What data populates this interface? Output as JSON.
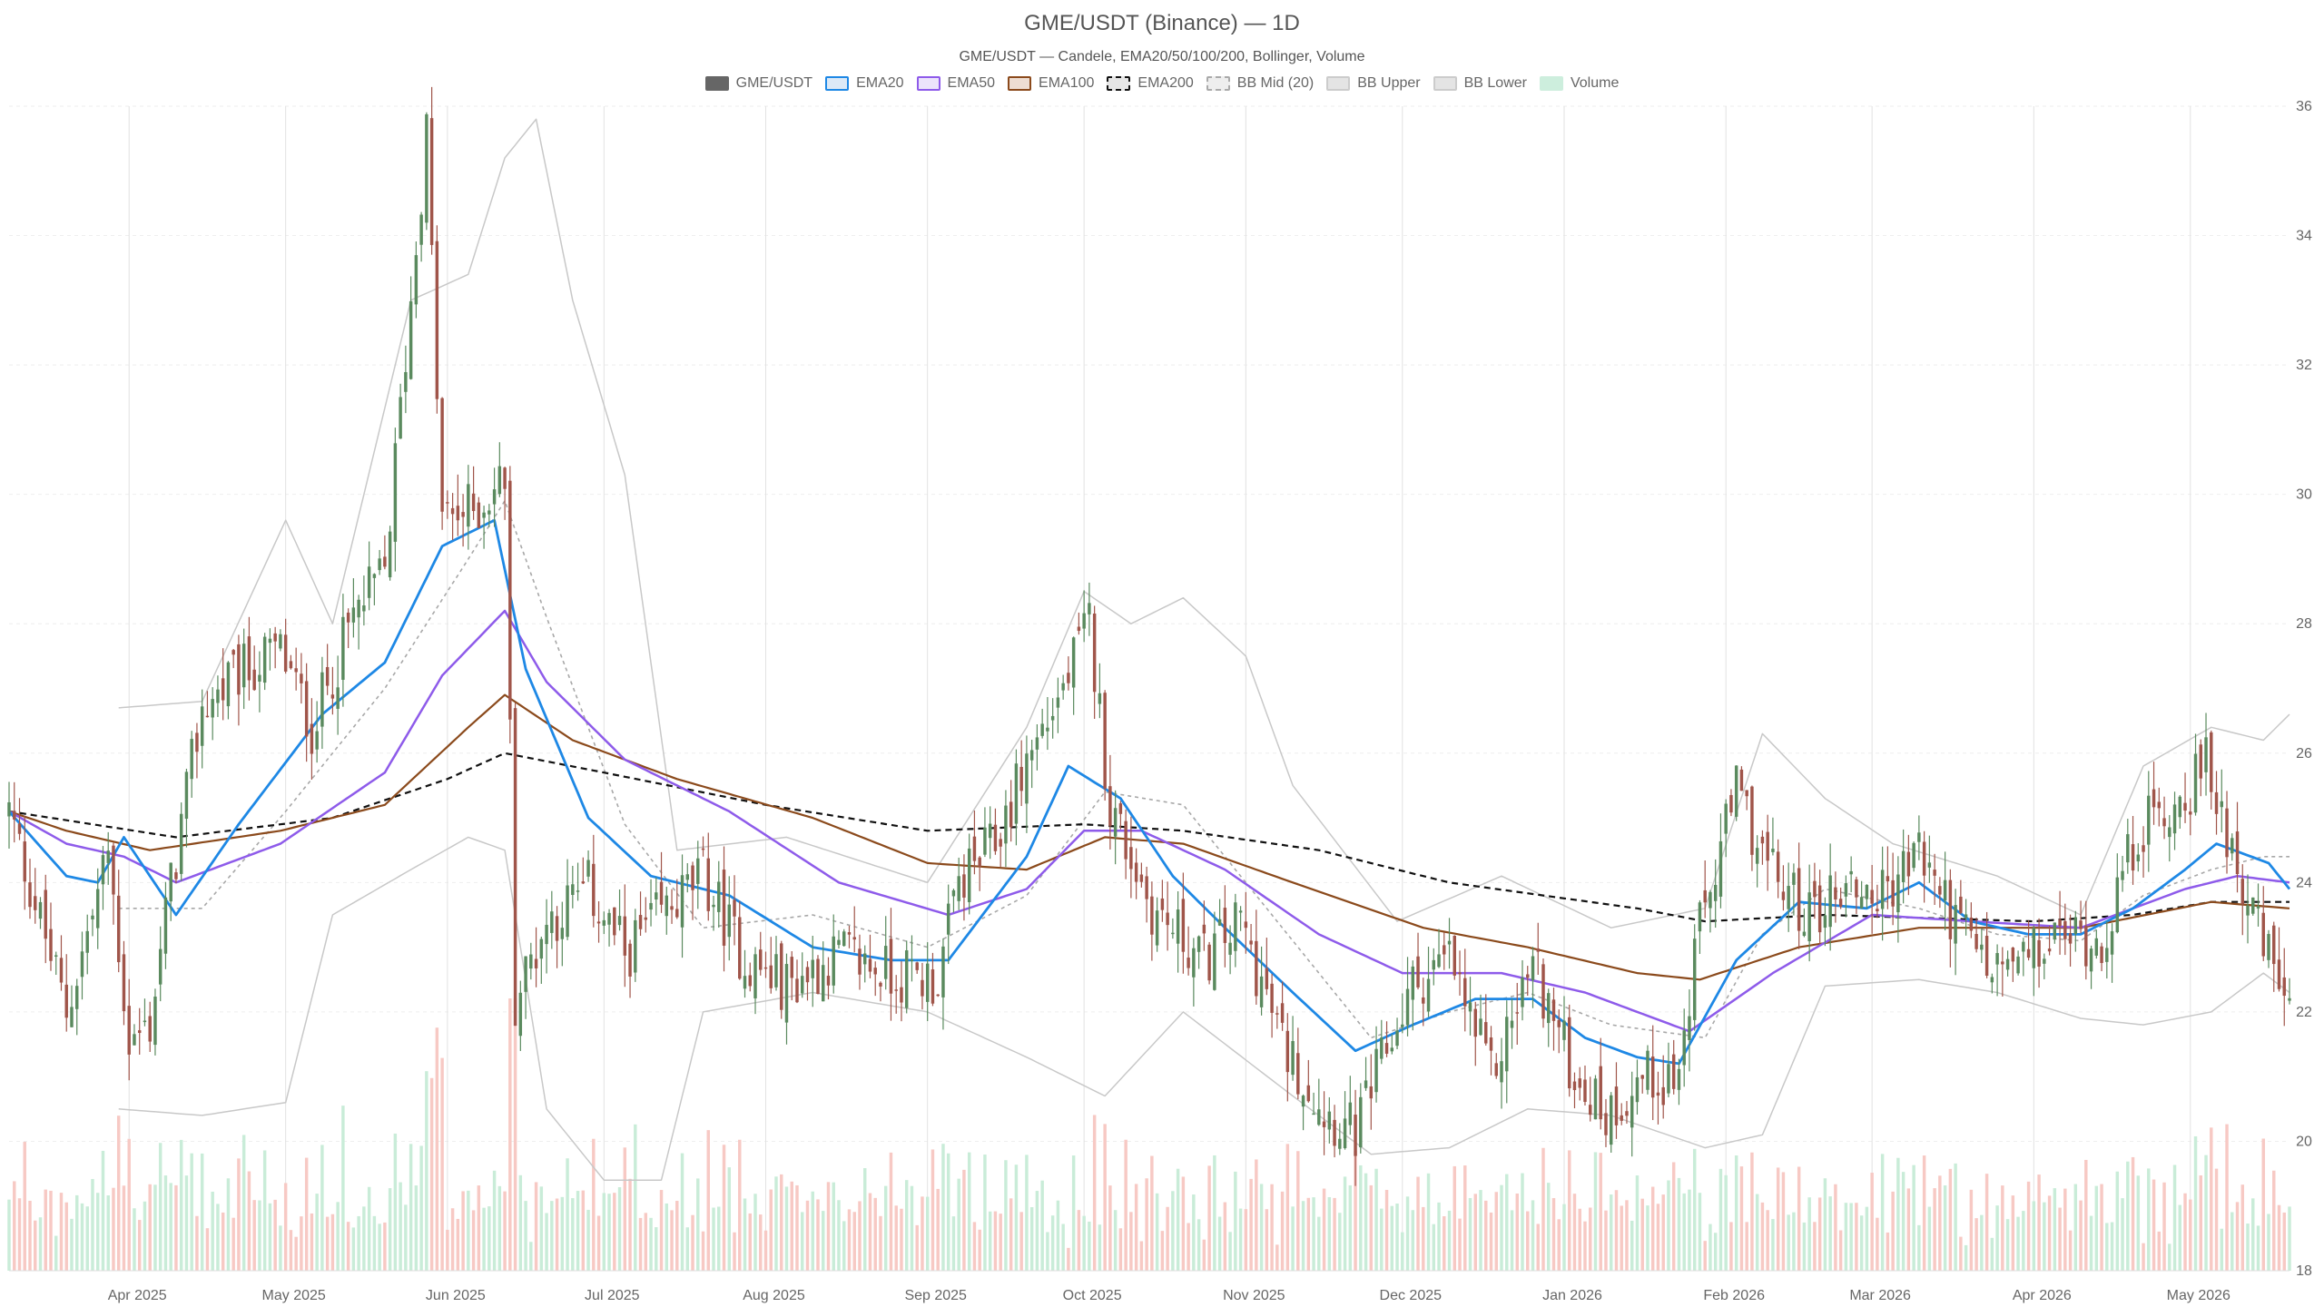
{
  "chart_data": {
    "type": "candlestick",
    "title": "GME/USDT (Binance) — 1D",
    "subtitle": "GME/USDT — Candele, EMA20/50/100/200, Bollinger, Volume",
    "legend": [
      {
        "name": "GME/USDT",
        "color": "#666666",
        "fill": "#666666",
        "dash": false
      },
      {
        "name": "EMA20",
        "color": "#1e88e5",
        "fill": "#dce9f7",
        "dash": false
      },
      {
        "name": "EMA50",
        "color": "#8e5bea",
        "fill": "#ece4fb",
        "dash": false
      },
      {
        "name": "EMA100",
        "color": "#8b4a1c",
        "fill": "#eeddd2",
        "dash": false
      },
      {
        "name": "EMA200",
        "color": "#111111",
        "fill": "#e6e6e6",
        "dash": true
      },
      {
        "name": "BB Mid (20)",
        "color": "#aaaaaa",
        "fill": "#eeeeee",
        "dash": true
      },
      {
        "name": "BB Upper",
        "color": "#cccccc",
        "fill": "#e4e4e4",
        "dash": false
      },
      {
        "name": "BB Lower",
        "color": "#cccccc",
        "fill": "#e4e4e4",
        "dash": false
      },
      {
        "name": "Volume",
        "color": "#cdeedd",
        "fill": "#cdeedd",
        "dash": false
      }
    ],
    "colors": {
      "up": "#5a8a5e",
      "down": "#a0554a",
      "vol_up": "#c9ecd8",
      "vol_down": "#f7c9c4"
    },
    "x_start": "2025-03-09",
    "x_end": "2026-05-20",
    "x_ticks": [
      "Apr 2025",
      "May 2025",
      "Jun 2025",
      "Jul 2025",
      "Aug 2025",
      "Sep 2025",
      "Oct 2025",
      "Nov 2025",
      "Dec 2025",
      "Jan 2026",
      "Feb 2026",
      "Mar 2026",
      "Apr 2026",
      "May 2026"
    ],
    "x_tick_dates": [
      "2025-04-01",
      "2025-05-01",
      "2025-06-01",
      "2025-07-01",
      "2025-08-01",
      "2025-09-01",
      "2025-10-01",
      "2025-11-01",
      "2025-12-01",
      "2026-01-01",
      "2026-02-01",
      "2026-03-01",
      "2026-04-01",
      "2026-05-01"
    ],
    "y_ticks": [
      18,
      20,
      22,
      24,
      26,
      28,
      30,
      32,
      34,
      36
    ],
    "ylim": [
      18,
      36
    ],
    "grid": true,
    "legend_position": "top-center",
    "close_keypoints": [
      [
        "2025-03-09",
        25.1
      ],
      [
        "2025-03-20",
        22.0
      ],
      [
        "2025-03-26",
        23.8
      ],
      [
        "2025-03-28",
        24.5
      ],
      [
        "2025-04-01",
        21.5
      ],
      [
        "2025-04-05",
        21.8
      ],
      [
        "2025-04-08",
        23.5
      ],
      [
        "2025-04-15",
        26.7
      ],
      [
        "2025-04-22",
        27.2
      ],
      [
        "2025-04-30",
        27.6
      ],
      [
        "2025-05-06",
        26.4
      ],
      [
        "2025-05-14",
        28.1
      ],
      [
        "2025-05-20",
        28.8
      ],
      [
        "2025-05-25",
        33.0
      ],
      [
        "2025-05-28",
        35.6
      ],
      [
        "2025-05-31",
        29.6
      ],
      [
        "2025-06-07",
        29.8
      ],
      [
        "2025-06-12",
        30.3
      ],
      [
        "2025-06-14",
        22.2
      ],
      [
        "2025-06-20",
        23.4
      ],
      [
        "2025-06-28",
        23.9
      ],
      [
        "2025-07-05",
        22.9
      ],
      [
        "2025-07-12",
        23.5
      ],
      [
        "2025-07-20",
        24.1
      ],
      [
        "2025-07-28",
        22.8
      ],
      [
        "2025-08-05",
        22.4
      ],
      [
        "2025-08-15",
        22.9
      ],
      [
        "2025-08-25",
        22.6
      ],
      [
        "2025-09-03",
        22.5
      ],
      [
        "2025-09-07",
        24.0
      ],
      [
        "2025-09-14",
        24.6
      ],
      [
        "2025-09-20",
        25.9
      ],
      [
        "2025-09-27",
        27.0
      ],
      [
        "2025-10-02",
        28.0
      ],
      [
        "2025-10-06",
        25.2
      ],
      [
        "2025-10-14",
        23.6
      ],
      [
        "2025-10-24",
        22.8
      ],
      [
        "2025-10-31",
        23.4
      ],
      [
        "2025-11-08",
        21.5
      ],
      [
        "2025-11-16",
        20.5
      ],
      [
        "2025-11-22",
        20.1
      ],
      [
        "2025-11-26",
        21.0
      ],
      [
        "2025-12-03",
        22.4
      ],
      [
        "2025-12-10",
        22.8
      ],
      [
        "2025-12-18",
        21.0
      ],
      [
        "2025-12-26",
        22.8
      ],
      [
        "2026-01-02",
        21.2
      ],
      [
        "2026-01-09",
        20.4
      ],
      [
        "2026-01-16",
        21.0
      ],
      [
        "2026-01-23",
        21.0
      ],
      [
        "2026-01-27",
        23.3
      ],
      [
        "2026-02-03",
        25.4
      ],
      [
        "2026-02-10",
        24.1
      ],
      [
        "2026-02-17",
        23.5
      ],
      [
        "2026-02-24",
        24.0
      ],
      [
        "2026-03-03",
        23.8
      ],
      [
        "2026-03-10",
        24.5
      ],
      [
        "2026-03-17",
        23.4
      ],
      [
        "2026-03-24",
        22.6
      ],
      [
        "2026-03-31",
        22.8
      ],
      [
        "2026-04-07",
        23.2
      ],
      [
        "2026-04-14",
        23.1
      ],
      [
        "2026-04-21",
        24.8
      ],
      [
        "2026-04-28",
        25.2
      ],
      [
        "2026-05-04",
        25.8
      ],
      [
        "2026-05-09",
        24.6
      ],
      [
        "2026-05-14",
        23.2
      ],
      [
        "2026-05-20",
        22.1
      ]
    ],
    "ema20_keypoints": [
      [
        "2025-03-09",
        25.1
      ],
      [
        "2025-03-20",
        24.1
      ],
      [
        "2025-03-26",
        24.0
      ],
      [
        "2025-03-31",
        24.7
      ],
      [
        "2025-04-10",
        23.5
      ],
      [
        "2025-04-22",
        24.9
      ],
      [
        "2025-05-08",
        26.6
      ],
      [
        "2025-05-20",
        27.4
      ],
      [
        "2025-05-31",
        29.2
      ],
      [
        "2025-06-10",
        29.6
      ],
      [
        "2025-06-16",
        27.3
      ],
      [
        "2025-06-28",
        25.0
      ],
      [
        "2025-07-10",
        24.1
      ],
      [
        "2025-07-25",
        23.8
      ],
      [
        "2025-08-10",
        23.0
      ],
      [
        "2025-08-25",
        22.8
      ],
      [
        "2025-09-05",
        22.8
      ],
      [
        "2025-09-20",
        24.4
      ],
      [
        "2025-09-28",
        25.8
      ],
      [
        "2025-10-08",
        25.3
      ],
      [
        "2025-10-18",
        24.1
      ],
      [
        "2025-10-28",
        23.3
      ],
      [
        "2025-11-10",
        22.3
      ],
      [
        "2025-11-22",
        21.4
      ],
      [
        "2025-12-03",
        21.8
      ],
      [
        "2025-12-15",
        22.2
      ],
      [
        "2025-12-26",
        22.2
      ],
      [
        "2026-01-05",
        21.6
      ],
      [
        "2026-01-15",
        21.3
      ],
      [
        "2026-01-23",
        21.2
      ],
      [
        "2026-02-03",
        22.8
      ],
      [
        "2026-02-15",
        23.7
      ],
      [
        "2026-02-28",
        23.6
      ],
      [
        "2026-03-10",
        24.0
      ],
      [
        "2026-03-20",
        23.4
      ],
      [
        "2026-03-31",
        23.2
      ],
      [
        "2026-04-10",
        23.2
      ],
      [
        "2026-04-20",
        23.6
      ],
      [
        "2026-04-30",
        24.2
      ],
      [
        "2026-05-06",
        24.6
      ],
      [
        "2026-05-16",
        24.3
      ],
      [
        "2026-05-20",
        23.9
      ]
    ],
    "ema50_keypoints": [
      [
        "2025-03-09",
        25.1
      ],
      [
        "2025-03-20",
        24.6
      ],
      [
        "2025-03-31",
        24.4
      ],
      [
        "2025-04-10",
        24.0
      ],
      [
        "2025-04-30",
        24.6
      ],
      [
        "2025-05-20",
        25.7
      ],
      [
        "2025-05-31",
        27.2
      ],
      [
        "2025-06-12",
        28.2
      ],
      [
        "2025-06-20",
        27.1
      ],
      [
        "2025-07-05",
        25.9
      ],
      [
        "2025-07-25",
        25.1
      ],
      [
        "2025-08-15",
        24.0
      ],
      [
        "2025-09-05",
        23.5
      ],
      [
        "2025-09-20",
        23.9
      ],
      [
        "2025-10-01",
        24.8
      ],
      [
        "2025-10-12",
        24.8
      ],
      [
        "2025-10-28",
        24.2
      ],
      [
        "2025-11-15",
        23.2
      ],
      [
        "2025-12-01",
        22.6
      ],
      [
        "2025-12-20",
        22.6
      ],
      [
        "2026-01-05",
        22.3
      ],
      [
        "2026-01-25",
        21.7
      ],
      [
        "2026-02-10",
        22.6
      ],
      [
        "2026-03-01",
        23.5
      ],
      [
        "2026-03-20",
        23.4
      ],
      [
        "2026-04-10",
        23.3
      ],
      [
        "2026-04-30",
        23.9
      ],
      [
        "2026-05-10",
        24.1
      ],
      [
        "2026-05-20",
        24.0
      ]
    ],
    "ema100_keypoints": [
      [
        "2025-03-09",
        25.1
      ],
      [
        "2025-03-20",
        24.8
      ],
      [
        "2025-04-05",
        24.5
      ],
      [
        "2025-04-30",
        24.8
      ],
      [
        "2025-05-20",
        25.2
      ],
      [
        "2025-06-05",
        26.4
      ],
      [
        "2025-06-12",
        26.9
      ],
      [
        "2025-06-25",
        26.2
      ],
      [
        "2025-07-15",
        25.6
      ],
      [
        "2025-08-10",
        25.0
      ],
      [
        "2025-09-01",
        24.3
      ],
      [
        "2025-09-20",
        24.2
      ],
      [
        "2025-10-05",
        24.7
      ],
      [
        "2025-10-20",
        24.6
      ],
      [
        "2025-11-10",
        24.0
      ],
      [
        "2025-12-05",
        23.3
      ],
      [
        "2025-12-25",
        23.0
      ],
      [
        "2026-01-15",
        22.6
      ],
      [
        "2026-01-27",
        22.5
      ],
      [
        "2026-02-15",
        23.0
      ],
      [
        "2026-03-10",
        23.3
      ],
      [
        "2026-04-10",
        23.3
      ],
      [
        "2026-05-05",
        23.7
      ],
      [
        "2026-05-20",
        23.6
      ]
    ],
    "ema200_keypoints": [
      [
        "2025-03-09",
        25.1
      ],
      [
        "2025-04-10",
        24.7
      ],
      [
        "2025-05-10",
        25.0
      ],
      [
        "2025-06-01",
        25.6
      ],
      [
        "2025-06-12",
        26.0
      ],
      [
        "2025-07-01",
        25.7
      ],
      [
        "2025-08-01",
        25.2
      ],
      [
        "2025-09-01",
        24.8
      ],
      [
        "2025-10-01",
        24.9
      ],
      [
        "2025-10-20",
        24.8
      ],
      [
        "2025-11-15",
        24.5
      ],
      [
        "2025-12-10",
        24.0
      ],
      [
        "2026-01-15",
        23.6
      ],
      [
        "2026-01-28",
        23.4
      ],
      [
        "2026-02-20",
        23.5
      ],
      [
        "2026-04-01",
        23.4
      ],
      [
        "2026-04-20",
        23.5
      ],
      [
        "2026-05-05",
        23.7
      ],
      [
        "2026-05-20",
        23.7
      ]
    ],
    "bb_upper_keypoints": [
      [
        "2025-03-30",
        26.7
      ],
      [
        "2025-04-15",
        26.8
      ],
      [
        "2025-05-01",
        29.6
      ],
      [
        "2025-05-10",
        28.0
      ],
      [
        "2025-05-25",
        33.0
      ],
      [
        "2025-06-05",
        33.4
      ],
      [
        "2025-06-12",
        35.2
      ],
      [
        "2025-06-18",
        35.8
      ],
      [
        "2025-06-25",
        33.0
      ],
      [
        "2025-07-05",
        30.3
      ],
      [
        "2025-07-15",
        24.5
      ],
      [
        "2025-08-05",
        24.7
      ],
      [
        "2025-09-01",
        24.0
      ],
      [
        "2025-09-20",
        26.4
      ],
      [
        "2025-10-01",
        28.5
      ],
      [
        "2025-10-10",
        28.0
      ],
      [
        "2025-10-20",
        28.4
      ],
      [
        "2025-11-01",
        27.5
      ],
      [
        "2025-11-10",
        25.5
      ],
      [
        "2025-11-30",
        23.4
      ],
      [
        "2025-12-20",
        24.1
      ],
      [
        "2026-01-10",
        23.3
      ],
      [
        "2026-01-28",
        23.6
      ],
      [
        "2026-02-08",
        26.3
      ],
      [
        "2026-02-20",
        25.3
      ],
      [
        "2026-03-05",
        24.6
      ],
      [
        "2026-03-25",
        24.1
      ],
      [
        "2026-04-10",
        23.5
      ],
      [
        "2026-04-22",
        25.8
      ],
      [
        "2026-05-05",
        26.4
      ],
      [
        "2026-05-15",
        26.2
      ],
      [
        "2026-05-20",
        26.6
      ]
    ],
    "bb_lower_keypoints": [
      [
        "2025-03-30",
        20.5
      ],
      [
        "2025-04-15",
        20.4
      ],
      [
        "2025-05-01",
        20.6
      ],
      [
        "2025-05-10",
        23.5
      ],
      [
        "2025-05-25",
        24.2
      ],
      [
        "2025-06-05",
        24.7
      ],
      [
        "2025-06-12",
        24.5
      ],
      [
        "2025-06-20",
        20.5
      ],
      [
        "2025-07-01",
        19.4
      ],
      [
        "2025-07-12",
        19.4
      ],
      [
        "2025-07-20",
        22.0
      ],
      [
        "2025-08-10",
        22.3
      ],
      [
        "2025-09-01",
        22.0
      ],
      [
        "2025-09-20",
        21.3
      ],
      [
        "2025-10-05",
        20.7
      ],
      [
        "2025-10-20",
        22.0
      ],
      [
        "2025-11-10",
        20.7
      ],
      [
        "2025-11-25",
        19.8
      ],
      [
        "2025-12-10",
        19.9
      ],
      [
        "2025-12-25",
        20.5
      ],
      [
        "2026-01-10",
        20.4
      ],
      [
        "2026-01-28",
        19.9
      ],
      [
        "2026-02-08",
        20.1
      ],
      [
        "2026-02-20",
        22.4
      ],
      [
        "2026-03-10",
        22.5
      ],
      [
        "2026-03-25",
        22.3
      ],
      [
        "2026-04-10",
        21.9
      ],
      [
        "2026-04-22",
        21.8
      ],
      [
        "2026-05-05",
        22.0
      ],
      [
        "2026-05-15",
        22.6
      ],
      [
        "2026-05-20",
        22.3
      ]
    ],
    "bb_mid_keypoints": [
      [
        "2025-03-30",
        23.6
      ],
      [
        "2025-04-15",
        23.6
      ],
      [
        "2025-05-01",
        25.1
      ],
      [
        "2025-05-20",
        27.0
      ],
      [
        "2025-06-05",
        29.0
      ],
      [
        "2025-06-12",
        29.9
      ],
      [
        "2025-06-20",
        28.1
      ],
      [
        "2025-07-05",
        24.9
      ],
      [
        "2025-07-20",
        23.3
      ],
      [
        "2025-08-10",
        23.5
      ],
      [
        "2025-09-01",
        23.0
      ],
      [
        "2025-09-20",
        23.8
      ],
      [
        "2025-10-05",
        25.4
      ],
      [
        "2025-10-20",
        25.2
      ],
      [
        "2025-11-10",
        23.1
      ],
      [
        "2025-11-25",
        21.6
      ],
      [
        "2025-12-10",
        22.0
      ],
      [
        "2025-12-25",
        22.3
      ],
      [
        "2026-01-10",
        21.8
      ],
      [
        "2026-01-28",
        21.6
      ],
      [
        "2026-02-08",
        23.2
      ],
      [
        "2026-02-20",
        23.9
      ],
      [
        "2026-03-10",
        23.6
      ],
      [
        "2026-03-25",
        23.2
      ],
      [
        "2026-04-10",
        23.1
      ],
      [
        "2026-04-22",
        23.8
      ],
      [
        "2026-05-05",
        24.2
      ],
      [
        "2026-05-15",
        24.4
      ],
      [
        "2026-05-20",
        24.4
      ]
    ],
    "volume_max": 3.0
  }
}
